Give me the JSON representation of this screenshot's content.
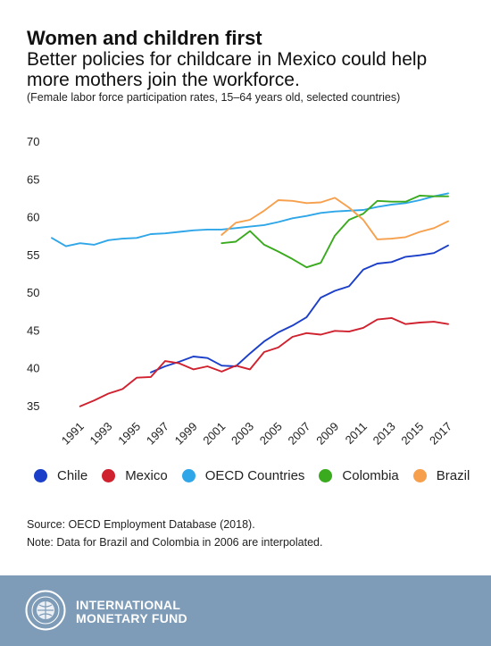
{
  "header": {
    "title": "Women and children first",
    "subtitle": "Better policies for childcare in Mexico could help more mothers join the workforce.",
    "note": "(Female labor force participation rates, 15–64 years old, selected countries)"
  },
  "chart_data": {
    "type": "line",
    "x_ticks": [
      "1991",
      "1993",
      "1995",
      "1997",
      "1999",
      "2001",
      "2003",
      "2005",
      "2007",
      "2009",
      "2011",
      "2013",
      "2015",
      "2017"
    ],
    "y_ticks": [
      35,
      40,
      45,
      50,
      55,
      60,
      65,
      70
    ],
    "xlim": [
      1989,
      2017
    ],
    "ylim": [
      35,
      70
    ],
    "grid": false,
    "legend_position": "bottom",
    "series": [
      {
        "name": "Chile",
        "color": "#1b3fc8",
        "x": [
          1996,
          1997,
          1998,
          1999,
          2000,
          2001,
          2002,
          2003,
          2004,
          2005,
          2006,
          2007,
          2008,
          2009,
          2010,
          2011,
          2012,
          2013,
          2014,
          2015,
          2016,
          2017
        ],
        "values": [
          39.4,
          40.2,
          40.8,
          41.5,
          41.3,
          40.3,
          40.2,
          41.9,
          43.5,
          44.7,
          45.6,
          46.7,
          49.3,
          50.2,
          50.8,
          53.0,
          53.8,
          54.0,
          54.7,
          54.9,
          55.2,
          56.2
        ]
      },
      {
        "name": "Mexico",
        "color": "#d0212f",
        "x": [
          1991,
          1992,
          1993,
          1994,
          1995,
          1996,
          1997,
          1998,
          1999,
          2000,
          2001,
          2002,
          2003,
          2004,
          2005,
          2006,
          2007,
          2008,
          2009,
          2010,
          2011,
          2012,
          2013,
          2014,
          2015,
          2016,
          2017
        ],
        "values": [
          34.9,
          35.7,
          36.6,
          37.2,
          38.7,
          38.8,
          40.9,
          40.6,
          39.8,
          40.2,
          39.5,
          40.3,
          39.8,
          42.1,
          42.7,
          44.1,
          44.6,
          44.4,
          44.9,
          44.8,
          45.3,
          46.4,
          46.6,
          45.8,
          46.0,
          46.1,
          45.8
        ]
      },
      {
        "name": "OECD Countries",
        "color": "#2ea6e8",
        "x": [
          1989,
          1990,
          1991,
          1992,
          1993,
          1994,
          1995,
          1996,
          1997,
          1998,
          1999,
          2000,
          2001,
          2002,
          2003,
          2004,
          2005,
          2006,
          2007,
          2008,
          2009,
          2010,
          2011,
          2012,
          2013,
          2014,
          2015,
          2016,
          2017
        ],
        "values": [
          57.2,
          56.1,
          56.5,
          56.3,
          56.9,
          57.1,
          57.2,
          57.7,
          57.8,
          58.0,
          58.2,
          58.3,
          58.3,
          58.5,
          58.7,
          58.9,
          59.3,
          59.8,
          60.1,
          60.5,
          60.7,
          60.8,
          60.9,
          61.3,
          61.6,
          61.8,
          62.2,
          62.7,
          63.1
        ]
      },
      {
        "name": "Colombia",
        "color": "#3aaa1f",
        "x": [
          2001,
          2002,
          2003,
          2004,
          2005,
          2006,
          2007,
          2008,
          2009,
          2010,
          2011,
          2012,
          2013,
          2014,
          2015,
          2016,
          2017
        ],
        "values": [
          56.5,
          56.7,
          58.1,
          56.3,
          55.4,
          54.4,
          53.3,
          53.9,
          57.5,
          59.6,
          60.4,
          62.1,
          62.0,
          62.0,
          62.8,
          62.7,
          62.7
        ]
      },
      {
        "name": "Brazil",
        "color": "#f6a04d",
        "x": [
          2001,
          2002,
          2003,
          2004,
          2005,
          2006,
          2007,
          2008,
          2009,
          2010,
          2011,
          2012,
          2013,
          2014,
          2015,
          2016,
          2017
        ],
        "values": [
          57.6,
          59.2,
          59.6,
          60.8,
          62.2,
          62.1,
          61.8,
          61.9,
          62.5,
          61.2,
          59.6,
          57.0,
          57.1,
          57.3,
          58.0,
          58.5,
          59.4
        ]
      }
    ]
  },
  "legend": [
    {
      "label": "Chile",
      "color": "#1b3fc8"
    },
    {
      "label": "Mexico",
      "color": "#d0212f"
    },
    {
      "label": "OECD Countries",
      "color": "#2ea6e8"
    },
    {
      "label": "Colombia",
      "color": "#3aaa1f"
    },
    {
      "label": "Brazil",
      "color": "#f6a04d"
    }
  ],
  "source": {
    "line1": "Source: OECD Employment Database (2018).",
    "line2": "Note: Data for Brazil and Colombia in 2006 are interpolated."
  },
  "footer": {
    "line1": "INTERNATIONAL",
    "line2": "MONETARY FUND",
    "logo_icon": "imf-seal-icon"
  }
}
